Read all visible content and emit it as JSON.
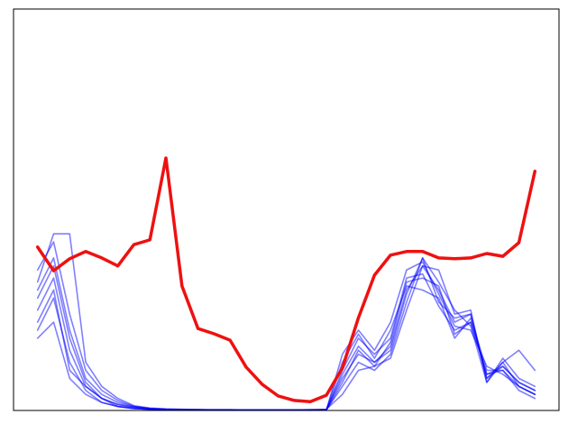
{
  "chart_data": {
    "type": "line",
    "x": [
      0,
      1,
      2,
      3,
      4,
      5,
      6,
      7,
      8,
      9,
      10,
      11,
      12,
      13,
      14,
      15,
      16,
      17,
      18,
      19,
      20,
      21,
      22,
      23,
      24,
      25,
      26,
      27,
      28,
      29,
      30,
      31
    ],
    "xlim": [
      -1.5,
      32.5
    ],
    "ylim": [
      0,
      100
    ],
    "grid": false,
    "series": [
      {
        "color": "#0000ff",
        "opacity": 0.5,
        "width": 1.6,
        "values": [
          30,
          38,
          20,
          8,
          4,
          2,
          1,
          0.5,
          0.3,
          0.2,
          0.2,
          0.1,
          0.1,
          0.1,
          0.1,
          0.1,
          0.1,
          0.1,
          0.2,
          8,
          14,
          12,
          16,
          30,
          36,
          30,
          22,
          24,
          8,
          12,
          6,
          4
        ]
      },
      {
        "color": "#0000ff",
        "opacity": 0.5,
        "width": 1.6,
        "values": [
          25,
          33,
          15,
          6,
          3,
          1.5,
          0.8,
          0.4,
          0.2,
          0.1,
          0.1,
          0.1,
          0.1,
          0.1,
          0.1,
          0.1,
          0.1,
          0.1,
          0.1,
          10,
          18,
          14,
          18,
          33,
          34,
          26,
          20,
          22,
          9,
          11,
          7,
          5
        ]
      },
      {
        "color": "#0000ff",
        "opacity": 0.5,
        "width": 1.6,
        "values": [
          35,
          42,
          24,
          10,
          5,
          2.5,
          1,
          0.5,
          0.3,
          0.2,
          0.2,
          0.1,
          0.1,
          0.1,
          0.1,
          0.1,
          0.1,
          0.1,
          0.2,
          6,
          12,
          10,
          14,
          27,
          38,
          32,
          25,
          21,
          7,
          13,
          8,
          6
        ]
      },
      {
        "color": "#0000ff",
        "opacity": 0.5,
        "width": 1.6,
        "values": [
          20,
          28,
          12,
          5,
          2,
          1,
          0.5,
          0.3,
          0.2,
          0.1,
          0.1,
          0.1,
          0.1,
          0.1,
          0.1,
          0.1,
          0.1,
          0.1,
          0.1,
          12,
          19,
          13,
          20,
          31,
          30,
          28,
          18,
          23,
          10,
          10,
          5,
          3
        ]
      },
      {
        "color": "#0000ff",
        "opacity": 0.5,
        "width": 1.6,
        "values": [
          32,
          44,
          44,
          12,
          6,
          3,
          1.2,
          0.6,
          0.4,
          0.3,
          0.2,
          0.2,
          0.2,
          0.1,
          0.1,
          0.1,
          0.1,
          0.2,
          0.3,
          4,
          10,
          11,
          13,
          25,
          36,
          35,
          24,
          25,
          7,
          12,
          15,
          10
        ]
      },
      {
        "color": "#0000ff",
        "opacity": 0.5,
        "width": 1.6,
        "values": [
          18,
          22,
          8,
          4,
          2,
          1,
          0.5,
          0.3,
          0.2,
          0.1,
          0.1,
          0.1,
          0.1,
          0.1,
          0.1,
          0.1,
          0.1,
          0.1,
          0.1,
          14,
          20,
          15,
          22,
          35,
          37,
          29,
          21,
          20,
          11,
          9,
          6,
          4
        ]
      },
      {
        "color": "#0000ff",
        "opacity": 0.5,
        "width": 1.6,
        "values": [
          28,
          36,
          18,
          7,
          3,
          1.5,
          0.8,
          0.4,
          0.2,
          0.2,
          0.1,
          0.1,
          0.1,
          0.1,
          0.1,
          0.1,
          0.1,
          0.1,
          0.1,
          9,
          16,
          12,
          15,
          29,
          38,
          27,
          23,
          24,
          8,
          11,
          7,
          5
        ]
      },
      {
        "color": "#0000ff",
        "opacity": 0.5,
        "width": 1.6,
        "values": [
          22,
          30,
          10,
          6,
          3,
          1,
          0.5,
          0.3,
          0.2,
          0.1,
          0.1,
          0.1,
          0.1,
          0.1,
          0.1,
          0.1,
          0.1,
          0.1,
          0.1,
          7,
          15,
          11,
          17,
          32,
          33,
          31,
          19,
          22,
          9,
          10,
          6,
          4
        ]
      },
      {
        "color": "#ee1111",
        "opacity": 1,
        "width": 3.5,
        "values": [
          40.7,
          34.8,
          37.8,
          39.6,
          38.0,
          36.0,
          41.3,
          42.5,
          62.9,
          31.0,
          20.4,
          19.1,
          17.5,
          10.8,
          6.5,
          3.6,
          2.5,
          2.2,
          3.8,
          10.6,
          23.1,
          33.7,
          38.7,
          39.6,
          39.6,
          38.0,
          37.8,
          38.0,
          39.1,
          38.4,
          41.8,
          59.6
        ]
      }
    ]
  }
}
